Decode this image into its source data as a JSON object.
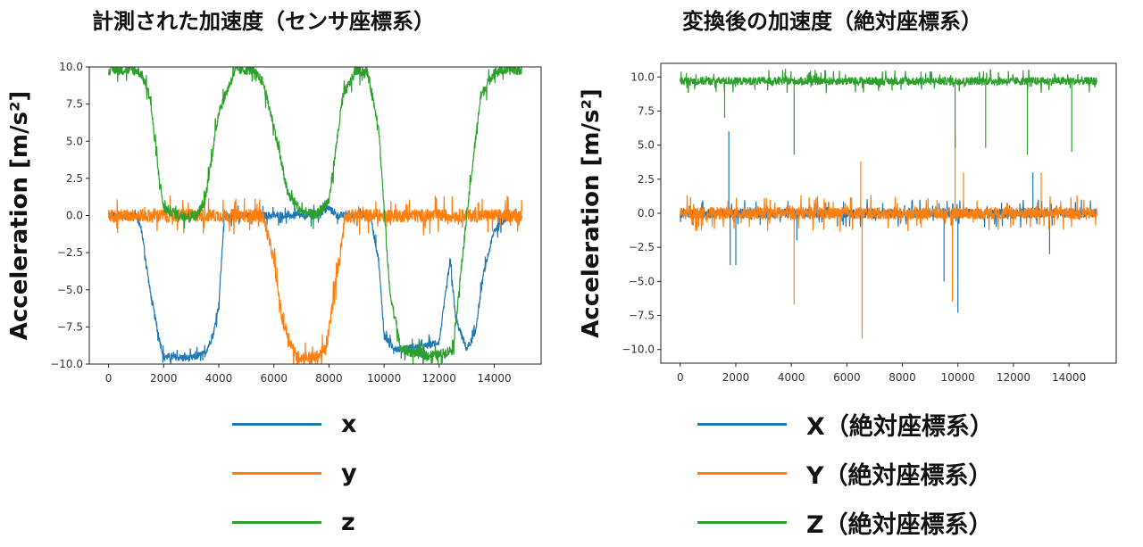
{
  "titles": {
    "left": "計測された加速度（センサ座標系）",
    "right": "変換後の加速度（絶対座標系）"
  },
  "colors": {
    "x": "#1f77b4",
    "y": "#ff7f0e",
    "z": "#2ca02c"
  },
  "legend_left": [
    {
      "label": "x",
      "color": "#1f77b4"
    },
    {
      "label": "y",
      "color": "#ff7f0e"
    },
    {
      "label": "z",
      "color": "#2ca02c"
    }
  ],
  "legend_right": [
    {
      "label": "X（絶対座標系）",
      "color": "#1f77b4"
    },
    {
      "label": "Y（絶対座標系）",
      "color": "#ff7f0e"
    },
    {
      "label": "Z（絶対座標系）",
      "color": "#2ca02c"
    }
  ],
  "chart_data": [
    {
      "type": "line",
      "title": "計測された加速度（センサ座標系）",
      "xlabel": "",
      "ylabel": "Acceleration [m/s²]",
      "xlim": [
        -700,
        15700
      ],
      "ylim": [
        -10,
        10
      ],
      "xticks": [
        0,
        2000,
        4000,
        6000,
        8000,
        10000,
        12000,
        14000
      ],
      "xtick_labels": [
        "0",
        "2000",
        "4000",
        "6000",
        "8000",
        "10000",
        "12000",
        "14000"
      ],
      "yticks": [
        -10,
        -7.5,
        -5,
        -2.5,
        0,
        2.5,
        5,
        7.5,
        10
      ],
      "ytick_labels": [
        "−10.0",
        "−7.5",
        "−5.0",
        "−2.5",
        "0.0",
        "2.5",
        "5.0",
        "7.5",
        "10.0"
      ],
      "grid": false,
      "series": [
        {
          "name": "x",
          "color": "#1f77b4",
          "x": [
            0,
            1000,
            1200,
            1500,
            1800,
            2000,
            3000,
            3500,
            3800,
            4000,
            4200,
            5400,
            6500,
            7500,
            8000,
            8300,
            9500,
            9800,
            10000,
            10200,
            10500,
            11500,
            12000,
            12400,
            12600,
            13000,
            13300,
            13600,
            14000,
            14500,
            15000
          ],
          "y": [
            0,
            0,
            -1,
            -5,
            -8,
            -9.5,
            -9.6,
            -9.3,
            -8,
            -6,
            0,
            0,
            0,
            0,
            0.5,
            0,
            0,
            -3,
            -8,
            -8.7,
            -9,
            -8.8,
            -8.5,
            -3,
            -7,
            -9,
            -8,
            -4,
            -1,
            0,
            0
          ],
          "noise": 0.25
        },
        {
          "name": "y",
          "color": "#ff7f0e",
          "x": [
            0,
            1000,
            2000,
            4000,
            5000,
            5600,
            6000,
            6300,
            6800,
            7500,
            7900,
            8200,
            8600,
            9000,
            15000
          ],
          "y": [
            0,
            0,
            0,
            0,
            0,
            0,
            -3,
            -7,
            -9.5,
            -9.6,
            -9,
            -5,
            0,
            0,
            0
          ],
          "noise": 0.45
        },
        {
          "name": "z",
          "color": "#2ca02c",
          "x": [
            0,
            1000,
            1200,
            1500,
            1800,
            2000,
            2600,
            3200,
            3500,
            4000,
            4600,
            5200,
            5600,
            6000,
            6500,
            7000,
            7500,
            8000,
            8500,
            9000,
            9400,
            9800,
            10200,
            10600,
            11000,
            11500,
            12000,
            12500,
            13000,
            13500,
            14000,
            14500,
            15000
          ],
          "y": [
            9.8,
            9.8,
            9.5,
            8,
            3,
            0.5,
            0,
            0,
            1,
            7,
            9.8,
            9.8,
            9,
            6,
            1.5,
            0.3,
            0,
            1,
            8,
            9.8,
            9.6,
            6,
            -5,
            -9,
            -9.2,
            -9.4,
            -9.4,
            -9,
            0,
            8,
            9.7,
            9.8,
            9.8
          ],
          "noise": 0.35
        }
      ]
    },
    {
      "type": "line",
      "title": "変換後の加速度（絶対座標系）",
      "xlabel": "",
      "ylabel": "Acceleration [m/s²]",
      "xlim": [
        -700,
        15700
      ],
      "ylim": [
        -11,
        11
      ],
      "xticks": [
        0,
        2000,
        4000,
        6000,
        8000,
        10000,
        12000,
        14000
      ],
      "xtick_labels": [
        "0",
        "2000",
        "4000",
        "6000",
        "8000",
        "10000",
        "12000",
        "14000"
      ],
      "yticks": [
        -10,
        -7.5,
        -5,
        -2.5,
        0,
        2.5,
        5,
        7.5,
        10
      ],
      "ytick_labels": [
        "−10.0",
        "−7.5",
        "−5.0",
        "−2.5",
        "0.0",
        "2.5",
        "5.0",
        "7.5",
        "10.0"
      ],
      "grid": false,
      "series": [
        {
          "name": "X（絶対座標系）",
          "color": "#1f77b4",
          "x": [
            0,
            15000
          ],
          "y": [
            0,
            0
          ],
          "noise": 0.35,
          "spikes": [
            [
              1750,
              6
            ],
            [
              1800,
              -3.8
            ],
            [
              2000,
              -3.8
            ],
            [
              4200,
              -2
            ],
            [
              10000,
              -7.3
            ],
            [
              9500,
              -5
            ],
            [
              12700,
              3
            ],
            [
              13300,
              -3
            ]
          ]
        },
        {
          "name": "Y（絶対座標系）",
          "color": "#ff7f0e",
          "x": [
            0,
            15000
          ],
          "y": [
            0,
            0
          ],
          "noise": 0.45,
          "spikes": [
            [
              4100,
              -6.7
            ],
            [
              6550,
              -9.2
            ],
            [
              6500,
              3.8
            ],
            [
              9900,
              6
            ],
            [
              9800,
              -6.5
            ],
            [
              10200,
              3
            ],
            [
              13000,
              3
            ]
          ]
        },
        {
          "name": "Z（絶対座標系）",
          "color": "#2ca02c",
          "x": [
            0,
            15000
          ],
          "y": [
            9.7,
            9.7
          ],
          "noise": 0.3,
          "spikes": [
            [
              1600,
              7
            ],
            [
              4100,
              4.3
            ],
            [
              9900,
              4.8
            ],
            [
              11000,
              4.8
            ],
            [
              12500,
              4.3
            ],
            [
              14100,
              4.5
            ]
          ]
        }
      ]
    }
  ]
}
